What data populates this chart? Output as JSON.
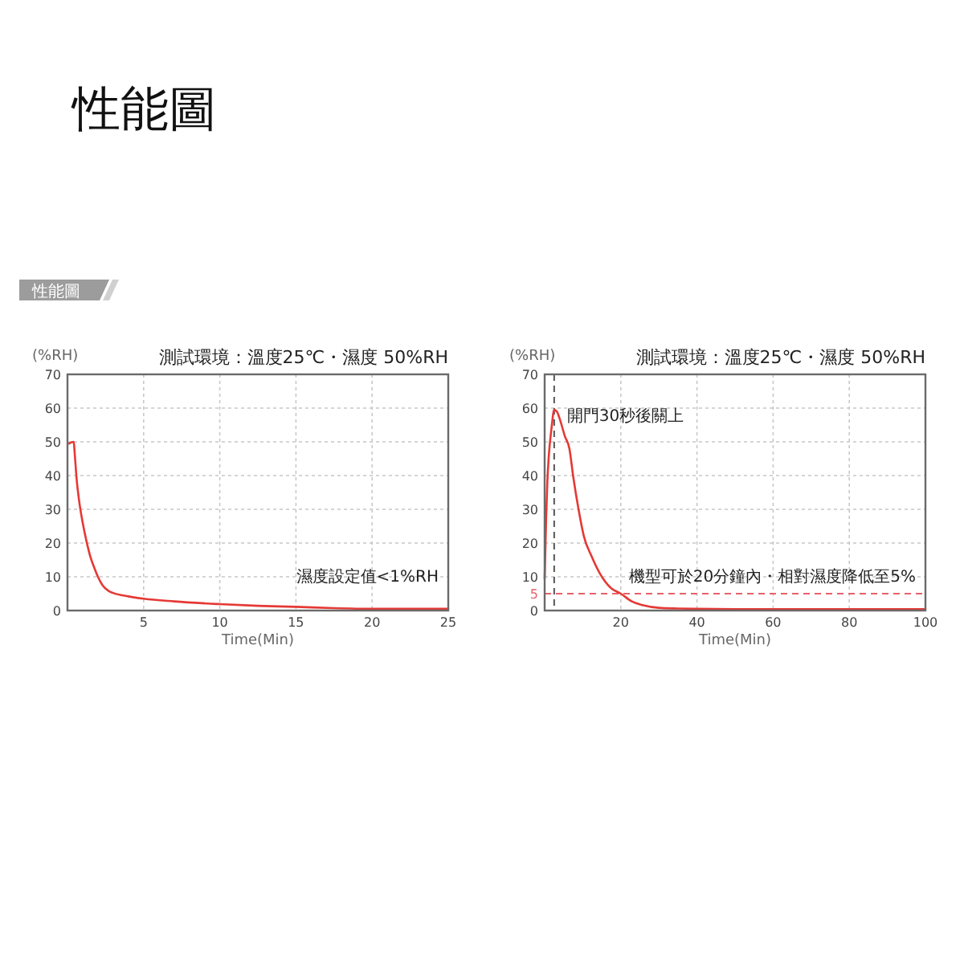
{
  "chart_data": [
    {
      "type": "other",
      "title": "性能圖",
      "annotations": [
        "性能圖"
      ]
    },
    {
      "type": "line",
      "title": "測試環境：溫度25℃・濕度 50%RH",
      "ylabel": "(%RH)",
      "xlabel": "Time(Min)",
      "xlim": [
        0,
        25
      ],
      "xticks": [
        5,
        10,
        15,
        20,
        25
      ],
      "ylim": [
        0,
        70
      ],
      "yticks": [
        0,
        10,
        20,
        30,
        40,
        50,
        60,
        70
      ],
      "grid": true,
      "color": "#e53935",
      "x": [
        0.1,
        0.4,
        0.5,
        0.6,
        0.75,
        1,
        1.25,
        1.5,
        1.75,
        2,
        2.3,
        2.7,
        3,
        4,
        5,
        7,
        10,
        12.5,
        15,
        17.5,
        20,
        22.5,
        25
      ],
      "values": [
        49.5,
        50,
        45,
        39,
        33,
        26,
        20.5,
        16,
        12.8,
        10,
        7.5,
        5.8,
        5.2,
        4.2,
        3.5,
        2.7,
        1.9,
        1.4,
        1.1,
        0.7,
        0.5,
        0.5,
        0.5
      ],
      "annotations": [
        "濕度設定值<1%RH"
      ]
    },
    {
      "type": "line",
      "title": "測試環境：溫度25℃・濕度 50%RH",
      "ylabel": "(%RH)",
      "xlabel": "Time(Min)",
      "xlim": [
        0,
        100
      ],
      "xticks": [
        20,
        40,
        60,
        80,
        100
      ],
      "ylim": [
        0,
        70
      ],
      "yticks": [
        0,
        10,
        20,
        30,
        40,
        50,
        60,
        70
      ],
      "grid": true,
      "color": "#e53935",
      "x": [
        0,
        0.4,
        0.7,
        1.1,
        1.8,
        2.5,
        3.2,
        3.9,
        5.3,
        6.5,
        7.5,
        8.9,
        10.3,
        12.4,
        14.5,
        17.3,
        20,
        22.9,
        25.7,
        30,
        35,
        40,
        50,
        60,
        70,
        80,
        90,
        100
      ],
      "values": [
        9.5,
        28,
        38,
        46,
        54,
        59.5,
        59,
        57,
        51.7,
        48,
        39.7,
        30,
        22,
        15.9,
        11,
        6.8,
        5,
        2.7,
        1.6,
        0.8,
        0.6,
        0.5,
        0.4,
        0.4,
        0.4,
        0.4,
        0.4,
        0.4
      ],
      "ref_lines": [
        {
          "axis": "y",
          "value": 5,
          "label": "5",
          "color": "#e8606a",
          "line_style": "dashed"
        },
        {
          "axis": "x",
          "value": 2.5,
          "color": "#555555",
          "line_style": "dashed"
        }
      ],
      "annotations": [
        {
          "text": "開門30秒後關上",
          "x": 2.5,
          "y": 59.5
        },
        "機型可於20分鐘內・相對濕度降低至5%"
      ]
    }
  ]
}
